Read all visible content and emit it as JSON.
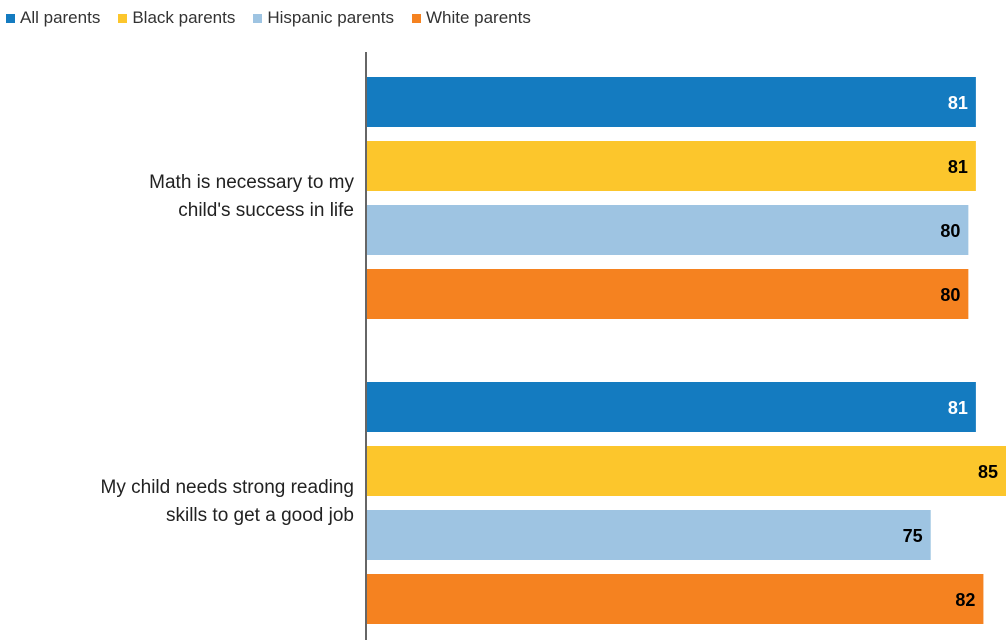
{
  "chart_data": {
    "type": "bar",
    "orientation": "horizontal",
    "categories": [
      [
        "Math is necessary to my",
        "child's success in life"
      ],
      [
        "My child needs strong reading",
        "skills to get a good job"
      ]
    ],
    "series": [
      {
        "name": "All parents",
        "color": "#147BC0",
        "label_color": "#ffffff",
        "values": [
          81,
          81
        ]
      },
      {
        "name": "Black parents",
        "color": "#FCC62C",
        "label_color": "#000000",
        "values": [
          81,
          85
        ]
      },
      {
        "name": "Hispanic parents",
        "color": "#9EC4E2",
        "label_color": "#000000",
        "values": [
          80,
          75
        ]
      },
      {
        "name": "White parents",
        "color": "#F58220",
        "label_color": "#000000",
        "values": [
          80,
          82
        ]
      }
    ],
    "xlim": [
      0,
      85
    ],
    "legend_position": "top-left",
    "grid": false,
    "title": "",
    "xlabel": "",
    "ylabel": ""
  }
}
